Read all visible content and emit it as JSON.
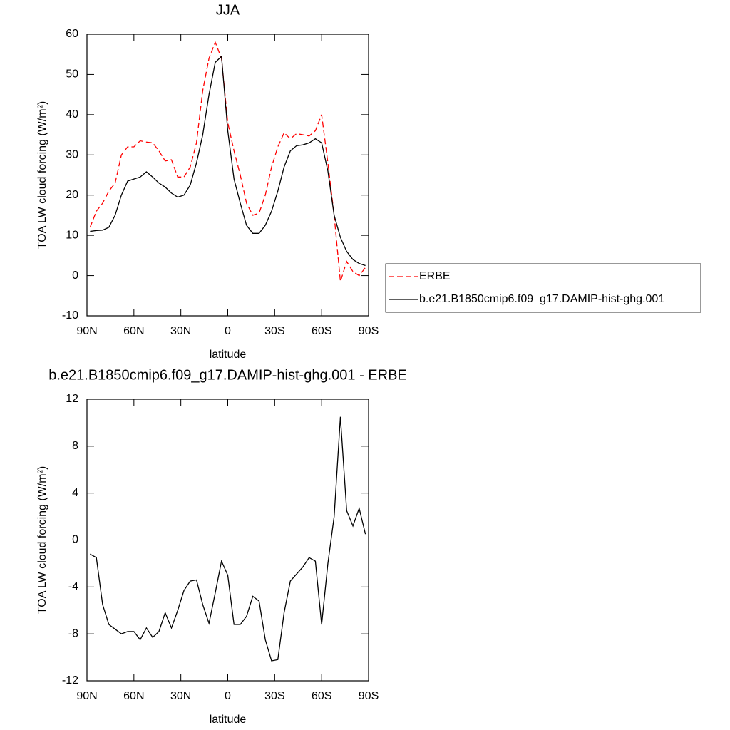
{
  "chart_data": [
    {
      "type": "line",
      "title": "JJA",
      "xlabel": "latitude",
      "ylabel": "TOA LW cloud forcing (W/m²)",
      "x": [
        88,
        84,
        80,
        76,
        72,
        68,
        64,
        60,
        56,
        52,
        48,
        44,
        40,
        36,
        32,
        28,
        24,
        20,
        16,
        12,
        8,
        4,
        0,
        -4,
        -8,
        -12,
        -16,
        -20,
        -24,
        -28,
        -32,
        -36,
        -40,
        -44,
        -48,
        -52,
        -56,
        -60,
        -64,
        -68,
        -72,
        -76,
        -80,
        -84,
        -88
      ],
      "series": [
        {
          "name": "ERBE",
          "color": "#ff0000",
          "dashed": true,
          "values": [
            12,
            16,
            18,
            21,
            23,
            30,
            32,
            32,
            33.5,
            33.2,
            33,
            31,
            28.5,
            28.8,
            24.5,
            24.5,
            27,
            33,
            46,
            54,
            58,
            54,
            38,
            31,
            25,
            18,
            15,
            15.5,
            20,
            27,
            32,
            35.5,
            34,
            35.3,
            35,
            34.7,
            36,
            40,
            28,
            15,
            -1.5,
            3.5,
            1,
            0,
            2
          ]
        },
        {
          "name": "b.e21.B1850cmip6.f09_g17.DAMIP-hist-ghg.001",
          "color": "#000000",
          "dashed": false,
          "values": [
            11,
            11.2,
            11.3,
            12,
            15,
            20,
            23.5,
            24,
            24.5,
            25.8,
            24.5,
            23,
            22,
            20.5,
            19.5,
            20,
            22.5,
            28,
            35,
            45,
            53,
            54.5,
            36,
            24,
            18,
            12.5,
            10.5,
            10.5,
            12.5,
            16,
            21,
            27,
            31,
            32.3,
            32.5,
            33,
            34,
            33,
            26,
            15,
            9.5,
            6,
            4,
            3,
            2.5
          ]
        }
      ],
      "xlim": [
        90,
        -90
      ],
      "ylim": [
        -10,
        60
      ],
      "xticks": [
        {
          "value": 90,
          "label": "90N"
        },
        {
          "value": 60,
          "label": "60N"
        },
        {
          "value": 30,
          "label": "30N"
        },
        0,
        {
          "value": -30,
          "label": "30S"
        },
        {
          "value": -60,
          "label": "60S"
        },
        {
          "value": -90,
          "label": "90S"
        }
      ],
      "yticks": [
        -10,
        0,
        10,
        20,
        30,
        40,
        50,
        60
      ],
      "legend": "right"
    },
    {
      "type": "line",
      "title": "b.e21.B1850cmip6.f09_g17.DAMIP-hist-ghg.001 - ERBE",
      "xlabel": "latitude",
      "ylabel": "TOA LW cloud forcing (W/m²)",
      "x": [
        88,
        84,
        80,
        76,
        72,
        68,
        64,
        60,
        56,
        52,
        48,
        44,
        40,
        36,
        32,
        28,
        24,
        20,
        16,
        12,
        8,
        4,
        0,
        -4,
        -8,
        -12,
        -16,
        -20,
        -24,
        -28,
        -32,
        -36,
        -40,
        -44,
        -48,
        -52,
        -56,
        -60,
        -64,
        -68,
        -72,
        -76,
        -80,
        -84,
        -88
      ],
      "series": [
        {
          "color": "#000000",
          "dashed": false,
          "values": [
            -1.2,
            -1.5,
            -5.5,
            -7.2,
            -7.6,
            -8,
            -7.8,
            -7.8,
            -8.5,
            -7.5,
            -8.3,
            -7.8,
            -6.2,
            -7.5,
            -6,
            -4.3,
            -3.5,
            -3.4,
            -5.5,
            -7.1,
            -4.5,
            -1.8,
            -3,
            -7.2,
            -7.2,
            -6.5,
            -4.8,
            -5.2,
            -8.5,
            -10.3,
            -10.2,
            -6.2,
            -3.5,
            -2.9,
            -2.3,
            -1.5,
            -1.8,
            -7.2,
            -2,
            2,
            10.5,
            2.5,
            1.2,
            2.7,
            0.5
          ]
        }
      ],
      "xlim": [
        90,
        -90
      ],
      "ylim": [
        -12,
        12
      ],
      "xticks": [
        {
          "value": 90,
          "label": "90N"
        },
        {
          "value": 60,
          "label": "60N"
        },
        {
          "value": 30,
          "label": "30N"
        },
        0,
        {
          "value": -30,
          "label": "30S"
        },
        {
          "value": -60,
          "label": "60S"
        },
        {
          "value": -90,
          "label": "90S"
        }
      ],
      "yticks": [
        -12,
        -8,
        -4,
        0,
        4,
        8,
        12
      ]
    }
  ]
}
